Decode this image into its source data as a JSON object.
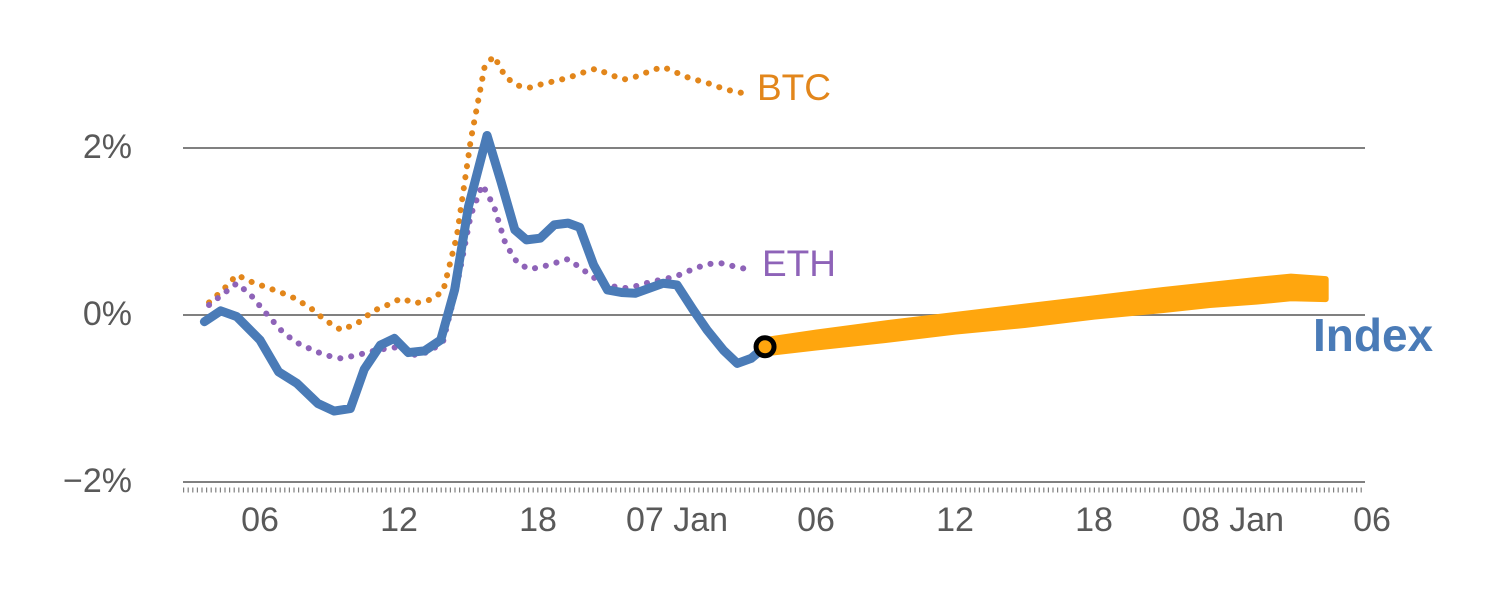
{
  "colors": {
    "btc": "#E2861B",
    "eth": "#8E63B8",
    "index": "#4A7BB7",
    "forecast": "#FFA60E",
    "grid": "#808080",
    "tick_text": "#595959",
    "marker_ring": "#000000"
  },
  "labels": {
    "btc": "BTC",
    "eth": "ETH",
    "index": "Index"
  },
  "chart_data": {
    "type": "line",
    "title": "",
    "xlabel": "",
    "ylabel": "",
    "x_unit": "hours since 06 Jan 00:00",
    "y_axis": {
      "range": [
        -2.45,
        3.45
      ],
      "ticks": [
        {
          "value": 2,
          "label": "2%"
        },
        {
          "value": 0,
          "label": "0%"
        },
        {
          "value": -2,
          "label": "−2%"
        }
      ],
      "grid": true
    },
    "x_axis": {
      "range": [
        2.7,
        53.7
      ],
      "ticks": [
        {
          "t": 6,
          "label": "06"
        },
        {
          "t": 12,
          "label": "12"
        },
        {
          "t": 18,
          "label": "18"
        },
        {
          "t": 24,
          "label": "07 Jan"
        },
        {
          "t": 30,
          "label": "06"
        },
        {
          "t": 36,
          "label": "12"
        },
        {
          "t": 42,
          "label": "18"
        },
        {
          "t": 48,
          "label": "08 Jan"
        },
        {
          "t": 54,
          "label": "06"
        }
      ]
    },
    "series": [
      {
        "name": "BTC",
        "color": "#E2861B",
        "style": "dotted",
        "points": [
          [
            3.8,
            0.15
          ],
          [
            4.4,
            0.3
          ],
          [
            5.0,
            0.48
          ],
          [
            5.6,
            0.4
          ],
          [
            6.2,
            0.34
          ],
          [
            6.9,
            0.27
          ],
          [
            7.5,
            0.2
          ],
          [
            8.2,
            0.08
          ],
          [
            8.8,
            -0.06
          ],
          [
            9.5,
            -0.18
          ],
          [
            10.2,
            -0.1
          ],
          [
            10.9,
            0.05
          ],
          [
            11.5,
            0.12
          ],
          [
            12.1,
            0.2
          ],
          [
            12.7,
            0.14
          ],
          [
            13.3,
            0.18
          ],
          [
            13.9,
            0.28
          ],
          [
            14.5,
            0.95
          ],
          [
            15.1,
            2.1
          ],
          [
            15.7,
            2.98
          ],
          [
            16.1,
            3.1
          ],
          [
            16.6,
            2.85
          ],
          [
            17.1,
            2.75
          ],
          [
            17.6,
            2.72
          ],
          [
            18.1,
            2.76
          ],
          [
            18.7,
            2.8
          ],
          [
            19.3,
            2.84
          ],
          [
            19.9,
            2.9
          ],
          [
            20.5,
            2.95
          ],
          [
            21.1,
            2.88
          ],
          [
            21.7,
            2.82
          ],
          [
            22.3,
            2.86
          ],
          [
            22.9,
            2.93
          ],
          [
            23.4,
            2.97
          ],
          [
            24.0,
            2.9
          ],
          [
            24.6,
            2.83
          ],
          [
            25.2,
            2.79
          ],
          [
            25.8,
            2.73
          ],
          [
            26.4,
            2.68
          ],
          [
            27.0,
            2.65
          ]
        ]
      },
      {
        "name": "ETH",
        "color": "#8E63B8",
        "style": "dotted",
        "points": [
          [
            3.8,
            0.12
          ],
          [
            4.4,
            0.25
          ],
          [
            5.0,
            0.38
          ],
          [
            5.6,
            0.24
          ],
          [
            6.2,
            0.04
          ],
          [
            6.9,
            -0.18
          ],
          [
            7.5,
            -0.32
          ],
          [
            8.2,
            -0.41
          ],
          [
            8.8,
            -0.48
          ],
          [
            9.5,
            -0.52
          ],
          [
            10.2,
            -0.48
          ],
          [
            10.9,
            -0.43
          ],
          [
            11.5,
            -0.4
          ],
          [
            12.1,
            -0.38
          ],
          [
            12.7,
            -0.48
          ],
          [
            13.3,
            -0.44
          ],
          [
            13.9,
            -0.32
          ],
          [
            14.5,
            0.35
          ],
          [
            15.1,
            1.2
          ],
          [
            15.6,
            1.56
          ],
          [
            16.1,
            1.3
          ],
          [
            16.6,
            0.85
          ],
          [
            17.1,
            0.63
          ],
          [
            17.6,
            0.55
          ],
          [
            18.1,
            0.57
          ],
          [
            18.7,
            0.62
          ],
          [
            19.3,
            0.67
          ],
          [
            19.9,
            0.55
          ],
          [
            20.5,
            0.43
          ],
          [
            21.1,
            0.35
          ],
          [
            21.7,
            0.32
          ],
          [
            22.3,
            0.35
          ],
          [
            22.9,
            0.4
          ],
          [
            23.5,
            0.43
          ],
          [
            24.1,
            0.48
          ],
          [
            24.7,
            0.55
          ],
          [
            25.3,
            0.61
          ],
          [
            25.9,
            0.62
          ],
          [
            26.5,
            0.58
          ],
          [
            27.0,
            0.55
          ]
        ]
      },
      {
        "name": "Index",
        "color": "#4A7BB7",
        "style": "solid",
        "points": [
          [
            3.6,
            -0.08
          ],
          [
            4.3,
            0.05
          ],
          [
            5.0,
            -0.02
          ],
          [
            6.0,
            -0.3
          ],
          [
            6.8,
            -0.68
          ],
          [
            7.6,
            -0.82
          ],
          [
            8.5,
            -1.06
          ],
          [
            9.2,
            -1.15
          ],
          [
            9.9,
            -1.12
          ],
          [
            10.5,
            -0.65
          ],
          [
            11.2,
            -0.36
          ],
          [
            11.8,
            -0.28
          ],
          [
            12.4,
            -0.45
          ],
          [
            13.1,
            -0.43
          ],
          [
            13.8,
            -0.3
          ],
          [
            14.4,
            0.3
          ],
          [
            15.0,
            1.3
          ],
          [
            15.8,
            2.15
          ],
          [
            16.4,
            1.6
          ],
          [
            17.0,
            1.02
          ],
          [
            17.5,
            0.9
          ],
          [
            18.1,
            0.92
          ],
          [
            18.7,
            1.08
          ],
          [
            19.3,
            1.1
          ],
          [
            19.8,
            1.05
          ],
          [
            20.4,
            0.6
          ],
          [
            21.0,
            0.3
          ],
          [
            21.6,
            0.27
          ],
          [
            22.2,
            0.26
          ],
          [
            22.8,
            0.32
          ],
          [
            23.4,
            0.38
          ],
          [
            24.0,
            0.36
          ],
          [
            24.7,
            0.06
          ],
          [
            25.3,
            -0.18
          ],
          [
            26.0,
            -0.42
          ],
          [
            26.6,
            -0.58
          ],
          [
            27.2,
            -0.52
          ],
          [
            27.8,
            -0.38
          ]
        ]
      }
    ],
    "forecast_band": {
      "name": "Index forecast",
      "color": "#FFA60E",
      "points_center_halfwidth": [
        [
          27.8,
          -0.38,
          0.08
        ],
        [
          30,
          -0.3,
          0.09
        ],
        [
          33,
          -0.2,
          0.1
        ],
        [
          36,
          -0.1,
          0.1
        ],
        [
          39,
          -0.01,
          0.11
        ],
        [
          42,
          0.09,
          0.11
        ],
        [
          45,
          0.18,
          0.12
        ],
        [
          47,
          0.24,
          0.12
        ],
        [
          49,
          0.29,
          0.13
        ],
        [
          50.5,
          0.33,
          0.13
        ],
        [
          52,
          0.31,
          0.12
        ]
      ]
    },
    "marker": {
      "t": 27.8,
      "value": -0.38,
      "fill": "#FFA60E",
      "ring": "#000000"
    },
    "legend_position": "inline-labels",
    "grid": true
  }
}
